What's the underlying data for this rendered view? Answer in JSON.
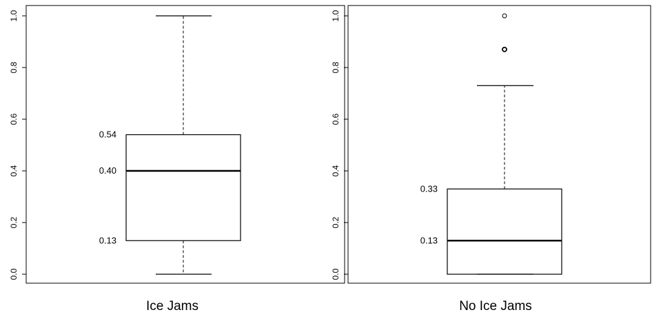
{
  "chart_data": [
    {
      "type": "box",
      "xlabel": "Ice Jams",
      "ylim": [
        0,
        1
      ],
      "yticks": [
        "0.0",
        "0.2",
        "0.4",
        "0.6",
        "0.8",
        "1.0"
      ],
      "box": {
        "min": 0.0,
        "q1": 0.13,
        "median": 0.4,
        "q3": 0.54,
        "max": 1.0
      },
      "outliers": [],
      "annotations": [
        {
          "value": 0.54,
          "text": "0.54"
        },
        {
          "value": 0.4,
          "text": "0.40"
        },
        {
          "value": 0.13,
          "text": "0.13"
        }
      ]
    },
    {
      "type": "box",
      "xlabel": "No Ice Jams",
      "ylim": [
        0,
        1
      ],
      "yticks": [
        "0.0",
        "0.2",
        "0.4",
        "0.6",
        "0.8",
        "1.0"
      ],
      "box": {
        "min": 0.0,
        "q1": 0.0,
        "median": 0.13,
        "q3": 0.33,
        "max": 0.73
      },
      "outliers": [
        1.0,
        0.87
      ],
      "annotations": [
        {
          "value": 0.33,
          "text": "0.33"
        },
        {
          "value": 0.13,
          "text": "0.13"
        }
      ]
    }
  ]
}
